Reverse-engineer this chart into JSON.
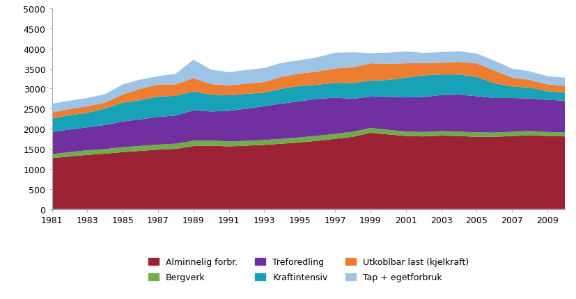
{
  "years": [
    1981,
    1982,
    1983,
    1984,
    1985,
    1986,
    1987,
    1988,
    1989,
    1990,
    1991,
    1992,
    1993,
    1994,
    1995,
    1996,
    1997,
    1998,
    1999,
    2000,
    2001,
    2002,
    2003,
    2004,
    2005,
    2006,
    2007,
    2008,
    2009,
    2010
  ],
  "alminnelig": [
    1270,
    1310,
    1350,
    1380,
    1420,
    1450,
    1480,
    1500,
    1570,
    1580,
    1560,
    1580,
    1600,
    1630,
    1660,
    1700,
    1750,
    1800,
    1900,
    1860,
    1820,
    1810,
    1830,
    1820,
    1800,
    1800,
    1820,
    1840,
    1820,
    1810
  ],
  "bergverk": [
    100,
    110,
    115,
    115,
    120,
    125,
    125,
    130,
    130,
    130,
    125,
    120,
    120,
    120,
    125,
    125,
    125,
    125,
    120,
    115,
    110,
    110,
    110,
    110,
    110,
    105,
    105,
    105,
    100,
    100
  ],
  "treforedling": [
    550,
    560,
    570,
    600,
    640,
    660,
    690,
    700,
    760,
    720,
    760,
    800,
    840,
    880,
    900,
    920,
    900,
    820,
    780,
    820,
    850,
    870,
    900,
    920,
    900,
    860,
    840,
    810,
    800,
    790
  ],
  "kraftintensiv": [
    330,
    360,
    360,
    410,
    470,
    480,
    510,
    490,
    470,
    420,
    390,
    370,
    340,
    370,
    380,
    350,
    370,
    390,
    400,
    420,
    490,
    540,
    510,
    500,
    480,
    370,
    290,
    270,
    215,
    200
  ],
  "utkoblbar": [
    155,
    150,
    165,
    148,
    205,
    280,
    300,
    285,
    330,
    260,
    245,
    255,
    265,
    295,
    310,
    330,
    355,
    395,
    430,
    400,
    360,
    305,
    295,
    315,
    340,
    315,
    220,
    190,
    170,
    170
  ],
  "tap": [
    220,
    210,
    205,
    210,
    250,
    230,
    205,
    265,
    460,
    360,
    330,
    340,
    350,
    350,
    330,
    355,
    395,
    375,
    255,
    280,
    295,
    255,
    265,
    265,
    245,
    245,
    225,
    215,
    205,
    200
  ],
  "colors": {
    "alminnelig": "#9b2335",
    "bergverk": "#70ad47",
    "treforedling": "#7030a0",
    "kraftintensiv": "#17a2b8",
    "utkoblbar": "#ed7d31",
    "tap": "#9dc3e6"
  },
  "legend_labels": {
    "alminnelig": "Alminnelig forbr.",
    "bergverk": "Bergverk",
    "treforedling": "Treforedling",
    "kraftintensiv": "Kraftintensiv",
    "utkoblbar": "Utkoblbar last (kjelkraft)",
    "tap": "Tap + egetforbruk"
  },
  "ylim": [
    0,
    5000
  ],
  "yticks": [
    0,
    500,
    1000,
    1500,
    2000,
    2500,
    3000,
    3500,
    4000,
    4500,
    5000
  ],
  "background_color": "#ffffff",
  "figsize": [
    8.28,
    4.31
  ],
  "dpi": 100
}
